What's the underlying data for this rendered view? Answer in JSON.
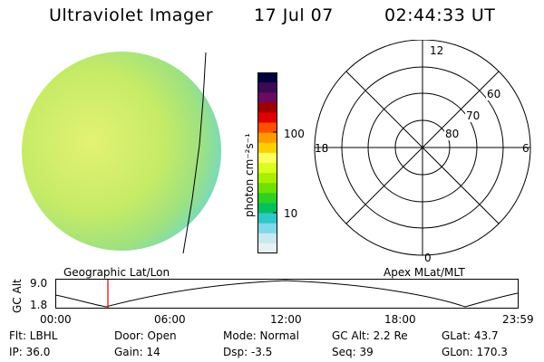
{
  "header": {
    "instrument": "Ultraviolet Imager",
    "date": "17 Jul 07",
    "time": "02:44:33 UT"
  },
  "colorbar": {
    "unit_label": "photon cm⁻²s⁻¹",
    "ticks": [
      "100",
      "10"
    ],
    "colors": [
      "#000040",
      "#3a0a55",
      "#6a0a60",
      "#a00000",
      "#e00000",
      "#ff5000",
      "#ff9a00",
      "#ffd000",
      "#ffff60",
      "#d8ff20",
      "#a8f000",
      "#70e000",
      "#30d020",
      "#00c060",
      "#30c8c8",
      "#80d8e8",
      "#c8e8f0",
      "#e8f0f4"
    ]
  },
  "polar_plot": {
    "lat_labels": [
      "60",
      "70",
      "80"
    ],
    "mlt_labels": {
      "top": "12",
      "left": "18",
      "right": "6",
      "bottom": "0"
    }
  },
  "altitude_plot": {
    "y_label": "GC Alt",
    "y_ticks": [
      "9.0",
      "1.8"
    ],
    "left_title": "Geographic Lat/Lon",
    "right_title": "Apex MLat/MLT",
    "x_ticks": [
      "00:00",
      "06:00",
      "12:00",
      "18:00",
      "23:59"
    ],
    "marker_color": "#e00000"
  },
  "status": {
    "row1": {
      "flt": "Flt: LBHL",
      "door": "Door: Open",
      "mode": "Mode: Normal",
      "gc_alt": "GC Alt: 2.2 Re",
      "glat": "GLat:  43.7"
    },
    "row2": {
      "ip": "IP: 36.0",
      "gain": "Gain: 14",
      "dsp": "Dsp:     -3.5",
      "seq": "Seq: 39",
      "glon": "GLon: 170.3"
    }
  },
  "image_colors": {
    "disk_main": "#c8ec50",
    "disk_left": "#e0f060",
    "disk_edge": "#70d8b0"
  }
}
